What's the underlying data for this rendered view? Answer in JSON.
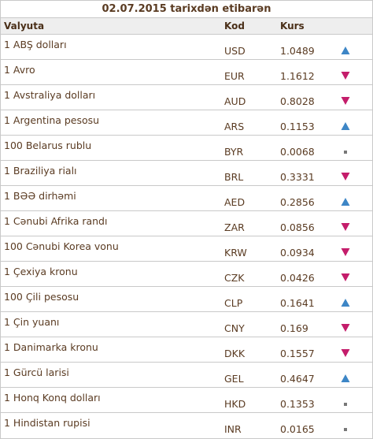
{
  "title": "02.07.2015 tarixdən etibarən",
  "columns": {
    "currency": "Valyuta",
    "code": "Kod",
    "rate": "Kurs"
  },
  "colors": {
    "up": "#3d86c6",
    "down": "#c41d6b",
    "same": "#777777"
  },
  "rows": [
    {
      "name": "1 ABŞ dolları",
      "code": "USD",
      "rate": "1.0489",
      "trend": "up",
      "trend_icon": "arrow-up-icon"
    },
    {
      "name": "1 Avro",
      "code": "EUR",
      "rate": "1.1612",
      "trend": "down",
      "trend_icon": "arrow-down-icon"
    },
    {
      "name": "1 Avstraliya dolları",
      "code": "AUD",
      "rate": "0.8028",
      "trend": "down",
      "trend_icon": "arrow-down-icon"
    },
    {
      "name": "1 Argentina pesosu",
      "code": "ARS",
      "rate": "0.1153",
      "trend": "up",
      "trend_icon": "arrow-up-icon"
    },
    {
      "name": "100 Belarus rublu",
      "code": "BYR",
      "rate": "0.0068",
      "trend": "same",
      "trend_icon": "square-icon"
    },
    {
      "name": "1 Braziliya rialı",
      "code": "BRL",
      "rate": "0.3331",
      "trend": "down",
      "trend_icon": "arrow-down-icon"
    },
    {
      "name": "1 BƏƏ dirhəmi",
      "code": "AED",
      "rate": "0.2856",
      "trend": "up",
      "trend_icon": "arrow-up-icon"
    },
    {
      "name": "1 Cənubi Afrika randı",
      "code": "ZAR",
      "rate": "0.0856",
      "trend": "down",
      "trend_icon": "arrow-down-icon"
    },
    {
      "name": "100 Cənubi Korea vonu",
      "code": "KRW",
      "rate": "0.0934",
      "trend": "down",
      "trend_icon": "arrow-down-icon"
    },
    {
      "name": "1 Çexiya kronu",
      "code": "CZK",
      "rate": "0.0426",
      "trend": "down",
      "trend_icon": "arrow-down-icon"
    },
    {
      "name": "100 Çili pesosu",
      "code": "CLP",
      "rate": "0.1641",
      "trend": "up",
      "trend_icon": "arrow-up-icon"
    },
    {
      "name": "1 Çin yuanı",
      "code": "CNY",
      "rate": "0.169",
      "trend": "down",
      "trend_icon": "arrow-down-icon"
    },
    {
      "name": "1 Danimarka kronu",
      "code": "DKK",
      "rate": "0.1557",
      "trend": "down",
      "trend_icon": "arrow-down-icon"
    },
    {
      "name": "1 Gürcü larisi",
      "code": "GEL",
      "rate": "0.4647",
      "trend": "up",
      "trend_icon": "arrow-up-icon"
    },
    {
      "name": "1 Honq Konq dolları",
      "code": "HKD",
      "rate": "0.1353",
      "trend": "same",
      "trend_icon": "square-icon"
    },
    {
      "name": "1 Hindistan rupisi",
      "code": "INR",
      "rate": "0.0165",
      "trend": "same",
      "trend_icon": "square-icon"
    }
  ]
}
